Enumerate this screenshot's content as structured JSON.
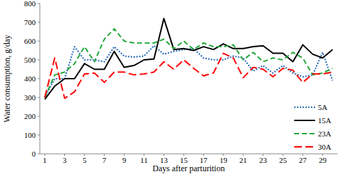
{
  "chart_data": {
    "type": "line",
    "x_label": "Days after parturition",
    "y_label": "Water consumption, g/day",
    "x": [
      1,
      2,
      3,
      4,
      5,
      6,
      7,
      8,
      9,
      10,
      11,
      12,
      13,
      14,
      15,
      16,
      17,
      18,
      19,
      20,
      21,
      22,
      23,
      24,
      25,
      26,
      27,
      28,
      29,
      30
    ],
    "xlim": [
      0.5,
      30.5
    ],
    "xticks": [
      1,
      3,
      5,
      7,
      9,
      11,
      13,
      15,
      17,
      19,
      21,
      23,
      25,
      27,
      29
    ],
    "ylim": [
      0,
      800
    ],
    "yticks": [
      0,
      100,
      200,
      300,
      400,
      500,
      600,
      700,
      800
    ],
    "grid": false,
    "legend": "lower right",
    "series": [
      {
        "name": "5A",
        "color": "#2f6fba",
        "line_style": "dotted",
        "values": [
          300,
          400,
          400,
          570,
          500,
          500,
          490,
          570,
          520,
          515,
          520,
          575,
          530,
          545,
          555,
          560,
          510,
          500,
          500,
          520,
          510,
          440,
          470,
          430,
          470,
          430,
          410,
          420,
          540,
          390
        ]
      },
      {
        "name": "15A",
        "color": "#000000",
        "line_style": "solid",
        "values": [
          290,
          360,
          400,
          400,
          480,
          450,
          450,
          545,
          460,
          470,
          500,
          505,
          720,
          555,
          560,
          550,
          570,
          555,
          585,
          560,
          560,
          570,
          575,
          535,
          535,
          490,
          580,
          530,
          510,
          555
        ]
      },
      {
        "name": "23A",
        "color": "#22a83c",
        "line_style": "dashed",
        "values": [
          300,
          420,
          435,
          480,
          570,
          490,
          610,
          665,
          600,
          590,
          590,
          590,
          610,
          560,
          600,
          555,
          590,
          570,
          570,
          580,
          500,
          540,
          490,
          510,
          500,
          540,
          510,
          420,
          430,
          455
        ]
      },
      {
        "name": "30A",
        "color": "#ff0000",
        "line_style": "longdash",
        "values": [
          300,
          510,
          295,
          330,
          425,
          430,
          380,
          435,
          435,
          420,
          425,
          435,
          490,
          450,
          500,
          455,
          415,
          430,
          535,
          510,
          405,
          460,
          450,
          410,
          455,
          445,
          380,
          425,
          425,
          435
        ]
      }
    ]
  }
}
